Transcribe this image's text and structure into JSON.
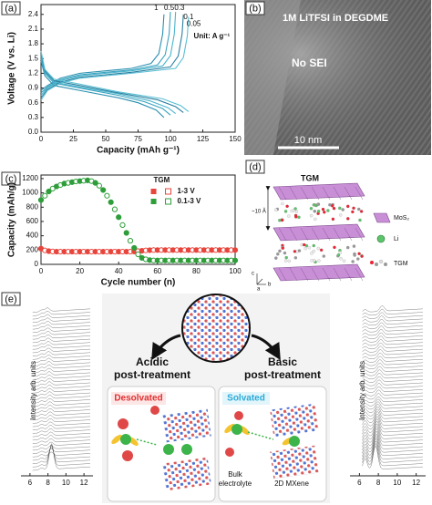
{
  "chart_data": [
    {
      "type": "line",
      "panel_label": "(a)",
      "x_label": "Capacity (mAh g⁻¹)",
      "y_label": "Voltage (V vs. Li)",
      "annotation": "Unit: A g⁻¹",
      "xlim": [
        0,
        150
      ],
      "xticks": [
        0,
        25,
        50,
        75,
        100,
        125,
        150
      ],
      "ylim": [
        0,
        2.6
      ],
      "yticks": [
        {
          "value": 0,
          "label": "0.0"
        },
        0.3,
        0.6,
        0.9,
        1.2,
        1.5,
        1.8,
        2.1,
        2.4
      ],
      "series": [
        {
          "name": "1",
          "color": "#2a8fb0",
          "x": [
            0,
            5,
            15,
            30,
            50,
            70,
            85,
            91,
            94,
            95,
            95,
            0,
            3,
            10,
            30,
            60,
            75,
            89,
            95
          ],
          "values": [
            0.85,
            0.95,
            1.1,
            1.2,
            1.25,
            1.3,
            1.4,
            1.6,
            2.0,
            2.4,
            null,
            1.45,
            1.15,
            0.95,
            0.85,
            0.7,
            0.6,
            0.45,
            0.3
          ]
        },
        {
          "name": "0.5",
          "color": "#3aa3c0",
          "x": [
            0,
            5,
            15,
            30,
            50,
            70,
            90,
            96,
            99,
            100,
            100,
            0,
            3,
            10,
            30,
            60,
            80,
            94,
            100
          ],
          "values": [
            0.8,
            0.92,
            1.07,
            1.17,
            1.22,
            1.27,
            1.37,
            1.58,
            2.0,
            2.45,
            null,
            1.5,
            1.2,
            1.0,
            0.9,
            0.75,
            0.62,
            0.48,
            0.35
          ]
        },
        {
          "name": "0.3",
          "color": "#4ab5cc",
          "x": [
            0,
            5,
            15,
            30,
            50,
            70,
            94,
            100,
            103,
            104,
            104,
            0,
            3,
            10,
            30,
            60,
            84,
            98,
            104
          ],
          "values": [
            0.75,
            0.9,
            1.05,
            1.15,
            1.2,
            1.25,
            1.35,
            1.56,
            2.0,
            2.45,
            null,
            1.55,
            1.22,
            1.02,
            0.92,
            0.78,
            0.64,
            0.5,
            0.38
          ]
        },
        {
          "name": "0.1",
          "color": "#2b7fa0",
          "x": [
            0,
            5,
            15,
            30,
            50,
            70,
            100,
            106,
            109,
            110,
            110,
            0,
            3,
            10,
            30,
            60,
            90,
            104,
            110
          ],
          "values": [
            0.7,
            0.87,
            1.02,
            1.12,
            1.17,
            1.22,
            1.33,
            1.55,
            2.0,
            2.4,
            null,
            1.6,
            1.25,
            1.05,
            0.95,
            0.8,
            0.66,
            0.52,
            0.4
          ]
        },
        {
          "name": "0.05",
          "color": "#5bbfd4",
          "x": [
            0,
            5,
            15,
            30,
            50,
            70,
            104,
            110,
            113,
            114,
            114,
            0,
            3,
            10,
            30,
            60,
            94,
            108,
            114
          ],
          "values": [
            0.65,
            0.85,
            1.0,
            1.1,
            1.15,
            1.2,
            1.3,
            1.52,
            1.95,
            2.35,
            null,
            1.65,
            1.28,
            1.08,
            0.98,
            0.82,
            0.68,
            0.54,
            0.42
          ]
        }
      ]
    },
    {
      "type": "scatter",
      "panel_label": "(c)",
      "x_label": "Cycle number (n)",
      "y_label": "Capacity (mAh/g)",
      "legend_title": "TGM",
      "xlim": [
        0,
        100
      ],
      "xticks": [
        0,
        20,
        40,
        60,
        80,
        100
      ],
      "ylim": [
        0,
        1250
      ],
      "yticks": [
        0,
        200,
        400,
        600,
        800,
        1000,
        1200
      ],
      "x": [
        0,
        2,
        4,
        6,
        8,
        10,
        12,
        14,
        16,
        18,
        20,
        22,
        24,
        26,
        28,
        30,
        32,
        34,
        36,
        38,
        40,
        42,
        44,
        46,
        48,
        50,
        52,
        54,
        56,
        58,
        60,
        62,
        64,
        66,
        68,
        70,
        72,
        74,
        76,
        78,
        80,
        82,
        84,
        86,
        88,
        90,
        92,
        94,
        96,
        98,
        100
      ],
      "series": [
        {
          "name": "1-3 V",
          "color": "#e8453c",
          "values": [
            220,
            195,
            185,
            180,
            178,
            178,
            178,
            178,
            178,
            178,
            178,
            178,
            178,
            178,
            178,
            178,
            178,
            178,
            178,
            178,
            178,
            178,
            178,
            178,
            180,
            185,
            190,
            195,
            198,
            200,
            200,
            200,
            200,
            200,
            200,
            200,
            200,
            200,
            200,
            200,
            200,
            200,
            200,
            200,
            200,
            200,
            200,
            200,
            200,
            200,
            200
          ]
        },
        {
          "name": "0.1-3 V",
          "color": "#2e9e3a",
          "values": [
            900,
            960,
            1020,
            1060,
            1090,
            1110,
            1130,
            1140,
            1150,
            1160,
            1165,
            1170,
            1175,
            1165,
            1140,
            1100,
            1040,
            960,
            870,
            770,
            660,
            550,
            440,
            330,
            230,
            140,
            90,
            70,
            60,
            55,
            55,
            55,
            55,
            55,
            55,
            55,
            55,
            55,
            55,
            55,
            55,
            55,
            55,
            55,
            55,
            55,
            55,
            55,
            55,
            55,
            55
          ]
        }
      ]
    },
    {
      "type": "waterfall",
      "y_label": "Intensity arb. units",
      "xlim": [
        5,
        13
      ],
      "xticks": [
        6,
        8,
        10,
        12
      ],
      "series": []
    },
    {
      "type": "waterfall",
      "y_label": "Intensity arb. units",
      "xlim": [
        5,
        13
      ],
      "xticks": [
        6,
        8,
        10,
        12
      ],
      "series": []
    }
  ],
  "tem": {
    "label": "(b)",
    "caption": "1M LiTFSI in DEGDME",
    "note": "No SEI",
    "scale_bar": "10 nm"
  },
  "structure": {
    "label": "(d)",
    "title": "TGM",
    "spacing": "~10 Å",
    "legend": [
      "MoS₂",
      "Li",
      "TGM"
    ],
    "axes": [
      "c",
      "a",
      "b"
    ]
  },
  "scheme": {
    "label": "(e)",
    "left_title": [
      "Acidic",
      "post-treatment"
    ],
    "right_title": [
      "Basic",
      "post-treatment"
    ],
    "left_state": "Desolvated",
    "right_state": "Solvated",
    "bulk": [
      "Bulk",
      "electrolyte"
    ],
    "mxene": "2D MXene"
  }
}
